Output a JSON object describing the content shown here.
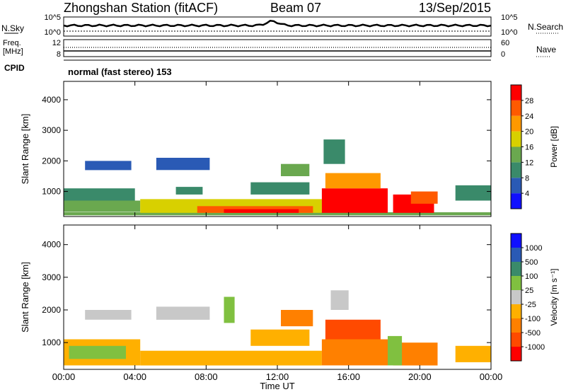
{
  "header": {
    "station": "Zhongshan Station (fitACF)",
    "beam": "Beam 07",
    "date": "13/Sep/2015"
  },
  "status_panels": {
    "nsky_label": "N.Sky",
    "nsky_ticks": [
      "10^5",
      "10^0"
    ],
    "nsearch_label": "N.Search",
    "nsearch_ticks": [
      "10^5",
      "10^0"
    ],
    "freq_label_1": "Freq.",
    "freq_label_2": "[MHz]",
    "freq_ticks": [
      "12",
      "8"
    ],
    "nave_label": "Nave",
    "nave_ticks": [
      "60",
      "0"
    ],
    "cpid_label": "CPID",
    "cpid_text": "normal (fast stereo) 153"
  },
  "x_axis": {
    "label": "Time UT",
    "ticks": [
      "00:00",
      "04:00",
      "08:00",
      "12:00",
      "16:00",
      "20:00",
      "00:00"
    ],
    "range_hours": [
      0,
      24
    ]
  },
  "chart_data": [
    {
      "type": "heatmap",
      "name": "power",
      "ylabel": "Slant Range [km]",
      "ylim": [
        180,
        4600
      ],
      "yticks": [
        1000,
        2000,
        3000,
        4000
      ],
      "colorbar": {
        "label": "Power [dB]",
        "ticks": [
          "4",
          "8",
          "12",
          "16",
          "20",
          "24",
          "28"
        ],
        "range": [
          0,
          30
        ],
        "colors": [
          "#1010ff",
          "#2a5ab5",
          "#3a8a6a",
          "#6aa84f",
          "#d8d000",
          "#ff9900",
          "#ff5a00",
          "#ff0000"
        ]
      },
      "patches": [
        {
          "t": [
            0.0,
            24.0
          ],
          "r": [
            220,
            320
          ],
          "v": 14
        },
        {
          "t": [
            0.0,
            4.3
          ],
          "r": [
            330,
            700
          ],
          "v": 14
        },
        {
          "t": [
            0.0,
            4.0
          ],
          "r": [
            700,
            1100
          ],
          "v": 8
        },
        {
          "t": [
            4.3,
            14.5
          ],
          "r": [
            300,
            750
          ],
          "v": 17
        },
        {
          "t": [
            7.5,
            14.0
          ],
          "r": [
            300,
            520
          ],
          "v": 24
        },
        {
          "t": [
            9.0,
            13.2
          ],
          "r": [
            300,
            420
          ],
          "v": 28
        },
        {
          "t": [
            1.2,
            3.8
          ],
          "r": [
            1700,
            2000
          ],
          "v": 6
        },
        {
          "t": [
            5.2,
            8.2
          ],
          "r": [
            1700,
            2100
          ],
          "v": 6
        },
        {
          "t": [
            6.3,
            7.8
          ],
          "r": [
            900,
            1150
          ],
          "v": 8
        },
        {
          "t": [
            10.5,
            13.8
          ],
          "r": [
            900,
            1300
          ],
          "v": 10
        },
        {
          "t": [
            12.2,
            13.8
          ],
          "r": [
            1500,
            1900
          ],
          "v": 12
        },
        {
          "t": [
            14.5,
            18.2
          ],
          "r": [
            300,
            1100
          ],
          "v": 27
        },
        {
          "t": [
            14.7,
            17.8
          ],
          "r": [
            1100,
            1600
          ],
          "v": 22
        },
        {
          "t": [
            14.6,
            15.8
          ],
          "r": [
            1900,
            2700
          ],
          "v": 10
        },
        {
          "t": [
            18.5,
            20.8
          ],
          "r": [
            300,
            900
          ],
          "v": 28
        },
        {
          "t": [
            19.5,
            21.0
          ],
          "r": [
            600,
            1000
          ],
          "v": 25
        },
        {
          "t": [
            22.0,
            24.0
          ],
          "r": [
            700,
            1200
          ],
          "v": 10
        }
      ]
    },
    {
      "type": "heatmap",
      "name": "velocity",
      "ylabel": "Slant Range [km]",
      "ylim": [
        180,
        4600
      ],
      "yticks": [
        1000,
        2000,
        3000,
        4000
      ],
      "colorbar": {
        "label": "Velocity [m s⁻¹]",
        "ticks": [
          "1000",
          "500",
          "100",
          "25",
          "-25",
          "-100",
          "-500",
          "-1000"
        ],
        "range": [
          -1000,
          1000
        ],
        "colors": [
          "#ff0000",
          "#ff4a00",
          "#ff8000",
          "#ffb000",
          "#c8c8c8",
          "#80c040",
          "#3a8a6a",
          "#2a5ab5",
          "#1010ff"
        ]
      },
      "patches": [
        {
          "t": [
            0.0,
            4.3
          ],
          "r": [
            300,
            1100
          ],
          "v": -150
        },
        {
          "t": [
            0.3,
            3.5
          ],
          "r": [
            500,
            900
          ],
          "v": 150
        },
        {
          "t": [
            4.3,
            14.5
          ],
          "r": [
            300,
            750
          ],
          "v": -250
        },
        {
          "t": [
            1.2,
            3.8
          ],
          "r": [
            1700,
            2000
          ],
          "v": 0
        },
        {
          "t": [
            5.2,
            8.2
          ],
          "r": [
            1700,
            2100
          ],
          "v": -80
        },
        {
          "t": [
            9.0,
            9.6
          ],
          "r": [
            1600,
            2400
          ],
          "v": 120
        },
        {
          "t": [
            10.5,
            13.8
          ],
          "r": [
            900,
            1400
          ],
          "v": -300
        },
        {
          "t": [
            12.2,
            14.0
          ],
          "r": [
            1500,
            2000
          ],
          "v": -350
        },
        {
          "t": [
            14.5,
            18.2
          ],
          "r": [
            300,
            1100
          ],
          "v": -500
        },
        {
          "t": [
            14.7,
            17.8
          ],
          "r": [
            1100,
            1700
          ],
          "v": -700
        },
        {
          "t": [
            15.0,
            16.0
          ],
          "r": [
            2000,
            2600
          ],
          "v": 0
        },
        {
          "t": [
            18.5,
            21.0
          ],
          "r": [
            300,
            1000
          ],
          "v": -400
        },
        {
          "t": [
            18.2,
            19.0
          ],
          "r": [
            300,
            1200
          ],
          "v": 120
        },
        {
          "t": [
            22.0,
            24.0
          ],
          "r": [
            400,
            900
          ],
          "v": -200
        }
      ]
    }
  ]
}
